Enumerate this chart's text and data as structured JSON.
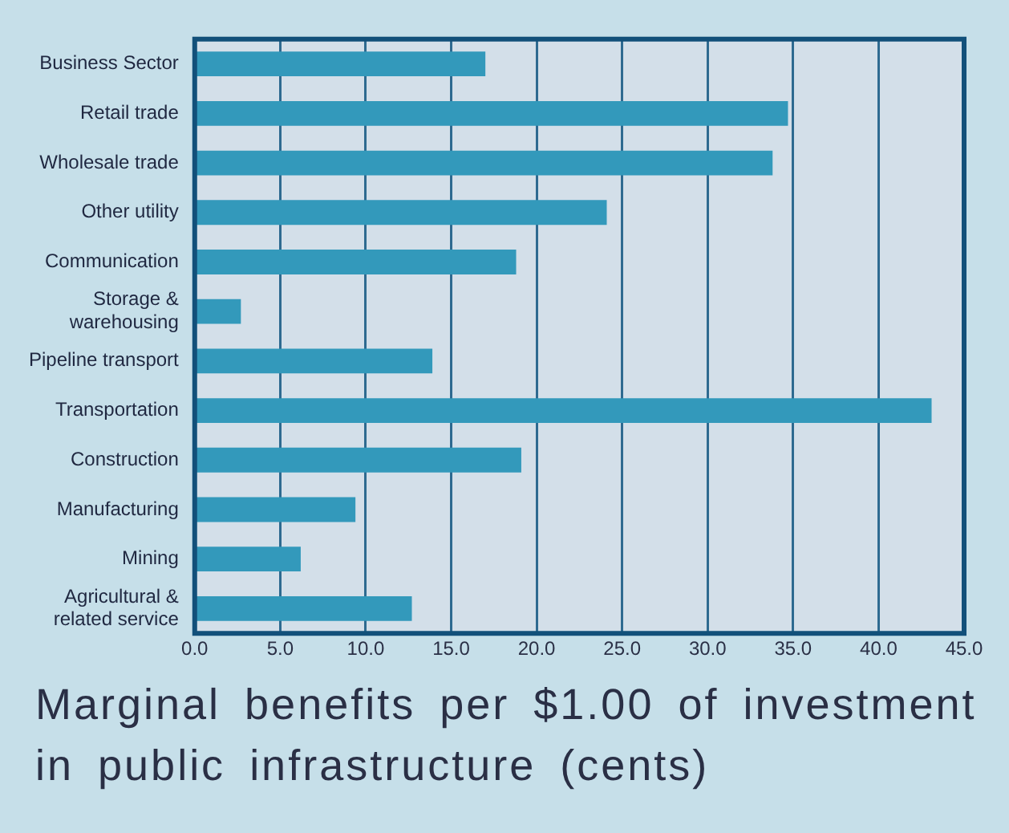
{
  "chart_data": {
    "type": "bar",
    "orientation": "horizontal",
    "xlabel": "Marginal benefits per $1.00 of investment in public infrastructure (cents)",
    "categories": [
      "Business Sector",
      "Retail trade",
      "Wholesale trade",
      "Other utility",
      "Communication",
      "Storage &\nwarehousing",
      "Pipeline transport",
      "Transportation",
      "Construction",
      "Manufacturing",
      "Mining",
      "Agricultural &\nrelated service"
    ],
    "values": [
      17.0,
      34.7,
      33.8,
      24.1,
      18.8,
      2.7,
      13.9,
      43.1,
      19.1,
      9.4,
      6.2,
      12.7
    ],
    "color": "#3399bb",
    "xlim": [
      0,
      45
    ],
    "xticks": [
      {
        "value": 0,
        "label": "0.0"
      },
      {
        "value": 5,
        "label": "5.0"
      },
      {
        "value": 10,
        "label": "10.0"
      },
      {
        "value": 15,
        "label": "15.0"
      },
      {
        "value": 20,
        "label": "20.0"
      },
      {
        "value": 25,
        "label": "25.0"
      },
      {
        "value": 30,
        "label": "30.0"
      },
      {
        "value": 35,
        "label": "35.0"
      },
      {
        "value": 40,
        "label": "40.0"
      },
      {
        "value": 45,
        "label": "45.0"
      }
    ],
    "grid": "x",
    "legend": false
  }
}
